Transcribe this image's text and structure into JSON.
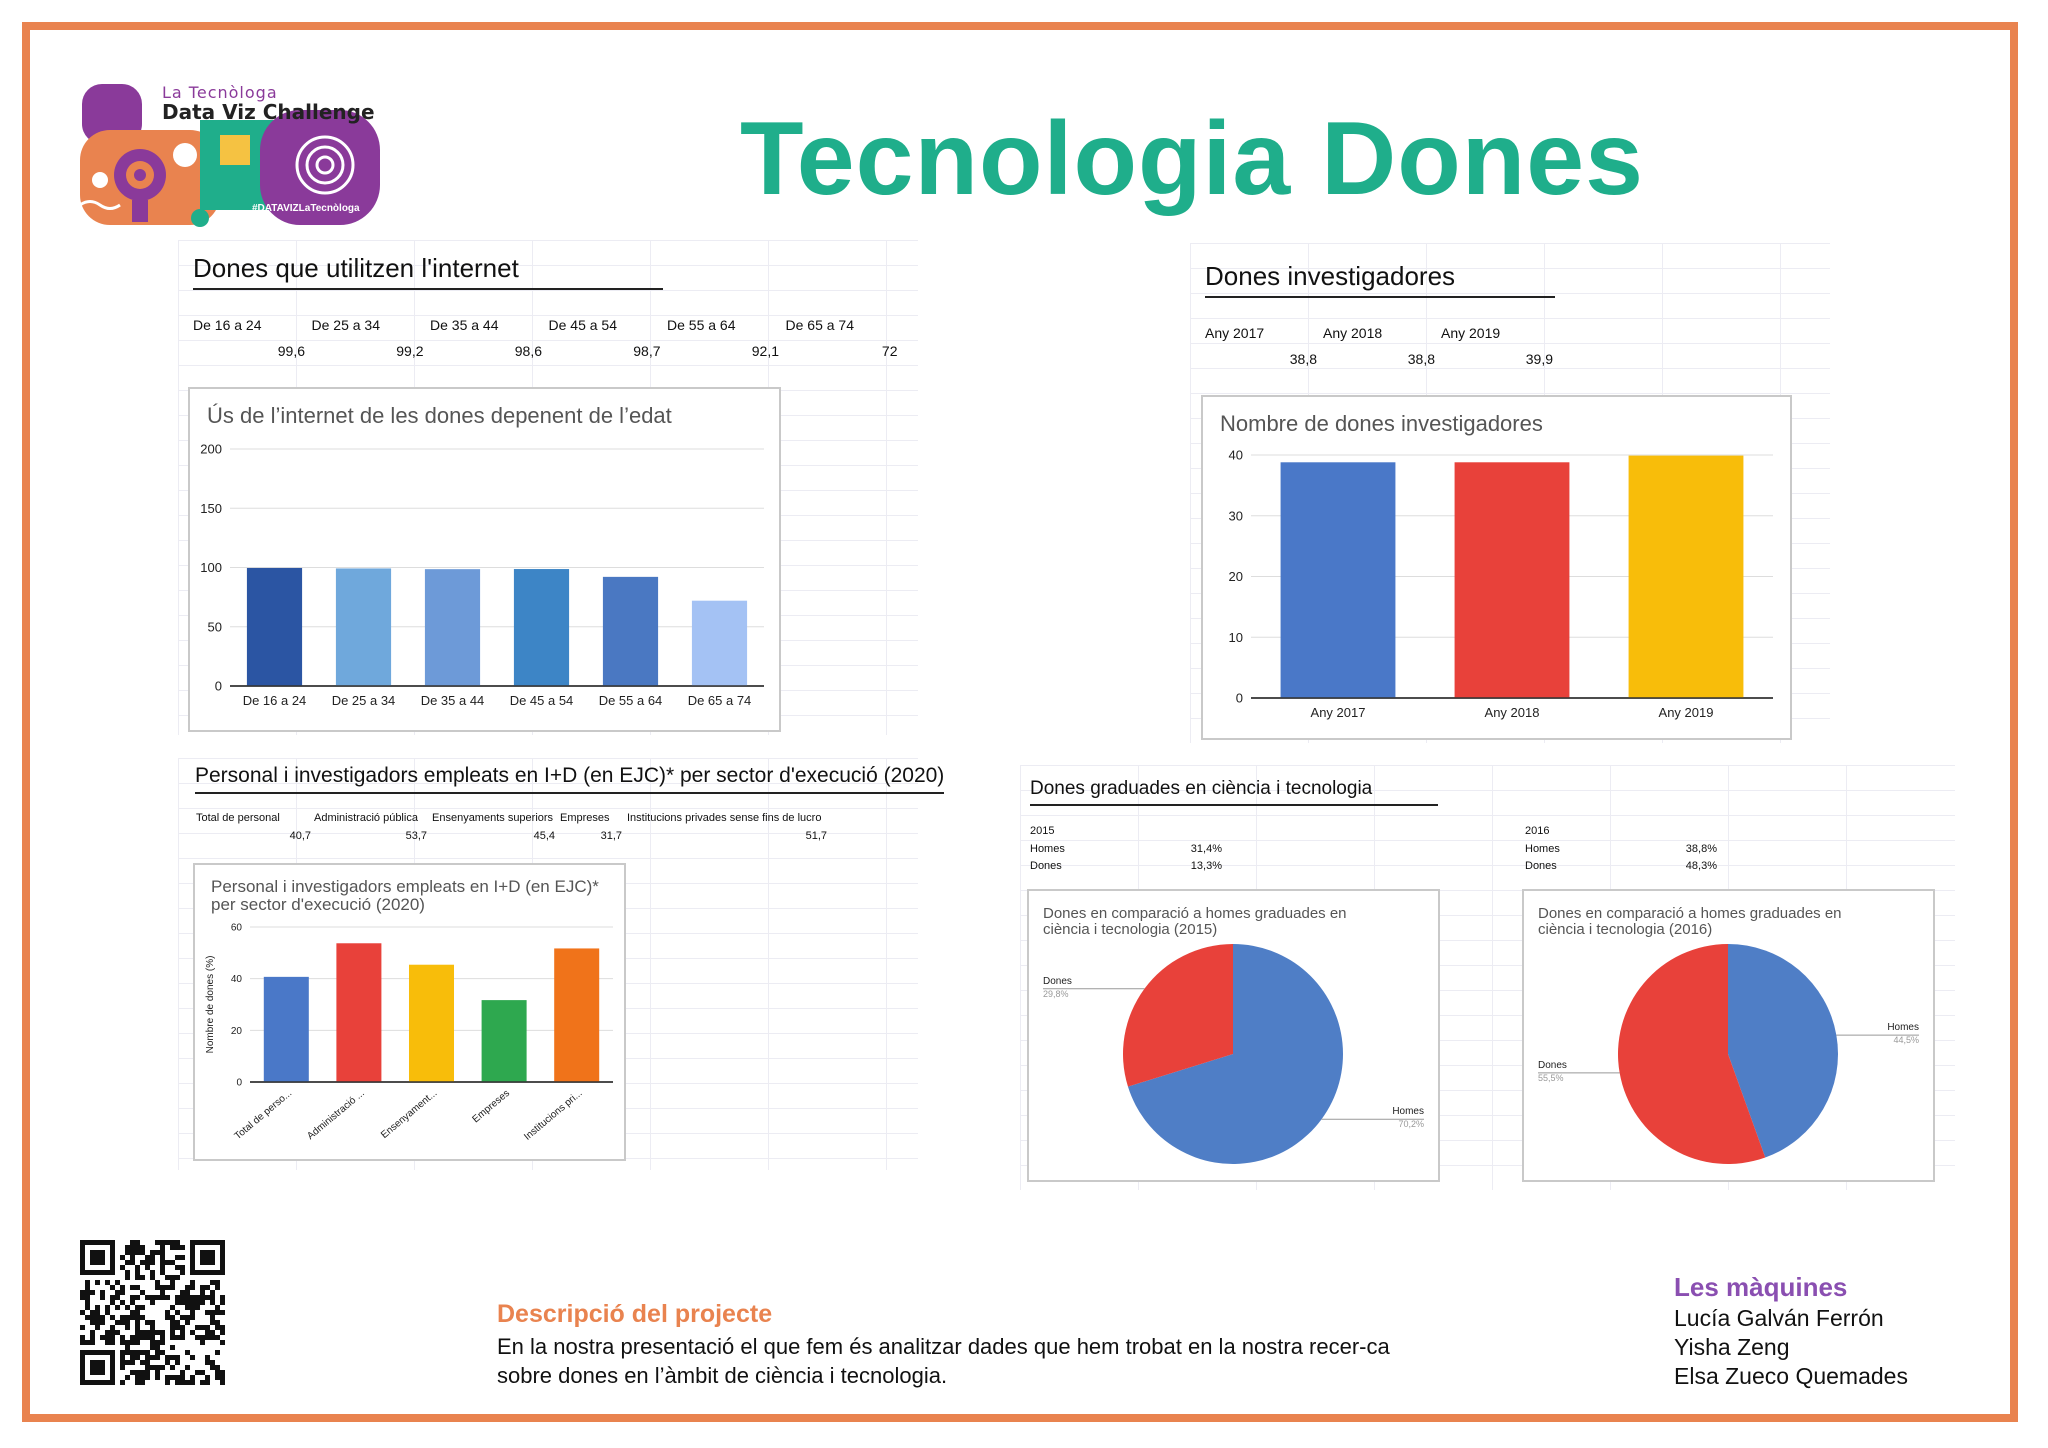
{
  "logo": {
    "small": "La Tecnòloga",
    "big": "Data Viz Challenge",
    "hashtag": "#DATAVIZLaTecnòloga"
  },
  "title": "Tecnologia Dones",
  "internet": {
    "section_title": "Dones que utilitzen l'internet",
    "headers": [
      "De 16 a 24",
      "De 25 a 34",
      "De 35 a 44",
      "De 45 a 54",
      "De 55 a 64",
      "De 65 a 74"
    ],
    "values": [
      "99,6",
      "99,2",
      "98,6",
      "98,7",
      "92,1",
      "72"
    ]
  },
  "researchers": {
    "section_title": "Dones investigadores",
    "headers": [
      "Any 2017",
      "Any 2018",
      "Any 2019"
    ],
    "values": [
      "38,8",
      "38,8",
      "39,9"
    ]
  },
  "personal": {
    "section_title": "Personal i investigadors empleats en I+D (en EJC)* per sector d'execució (2020)",
    "headers": [
      "Total de personal",
      "Administració pública",
      "Ensenyaments superiors",
      "Empreses",
      "Institucions privades sense fins de lucro"
    ],
    "values": [
      "40,7",
      "53,7",
      "45,4",
      "31,7",
      "51,7"
    ]
  },
  "graduates": {
    "section_title": "Dones graduades en ciència i tecnologia",
    "y2015": {
      "year": "2015",
      "rows": [
        [
          "Homes",
          "31,4%"
        ],
        [
          "Dones",
          "13,3%"
        ]
      ]
    },
    "y2016": {
      "year": "2016",
      "rows": [
        [
          "Homes",
          "38,8%"
        ],
        [
          "Dones",
          "48,3%"
        ]
      ]
    }
  },
  "chart_data": [
    {
      "type": "bar",
      "title": "Ús de l’internet de les dones depenent de l’edat",
      "categories": [
        "De 16 a 24",
        "De 25 a 34",
        "De 35 a 44",
        "De 45 a 54",
        "De 55 a 64",
        "De 65 a 74"
      ],
      "values": [
        99.6,
        99.2,
        98.6,
        98.7,
        92.1,
        72
      ],
      "colors": [
        "#2b55a3",
        "#6fa8dc",
        "#6d9ad8",
        "#3d85c6",
        "#4a78c2",
        "#a4c2f4"
      ],
      "ylim": [
        0,
        200
      ],
      "yticks": [
        0,
        50,
        100,
        150,
        200
      ],
      "grid": true
    },
    {
      "type": "bar",
      "title": "Nombre de dones investigadores",
      "categories": [
        "Any 2017",
        "Any 2018",
        "Any 2019"
      ],
      "values": [
        38.8,
        38.8,
        39.9
      ],
      "colors": [
        "#4a78c8",
        "#e8413a",
        "#f8bd0a"
      ],
      "ylim": [
        0,
        40
      ],
      "yticks": [
        0,
        10,
        20,
        30,
        40
      ],
      "grid": true
    },
    {
      "type": "bar",
      "title_lines": [
        "Personal i investigadors empleats en I+D (en EJC)*",
        "per sector d'execució (2020)"
      ],
      "ylabel": "Nombre de dones (%)",
      "categories": [
        "Total de perso...",
        "Administració ...",
        "Ensenyament...",
        "Empreses",
        "Institucions pri..."
      ],
      "values": [
        40.7,
        53.7,
        45.4,
        31.7,
        51.7
      ],
      "colors": [
        "#4a78c8",
        "#e8413a",
        "#f8bd0a",
        "#2ea84f",
        "#f0731a"
      ],
      "ylim": [
        0,
        60
      ],
      "yticks": [
        0,
        20,
        40,
        60
      ],
      "grid": true
    },
    {
      "type": "pie",
      "title_lines": [
        "Dones en comparació a homes graduades en",
        "ciència i tecnologia (2015)"
      ],
      "labels": [
        "Homes",
        "Dones"
      ],
      "values": [
        70.2,
        29.8
      ],
      "value_labels": [
        "70,2%",
        "29,8%"
      ],
      "colors": [
        "#4f7ec6",
        "#e8413a"
      ]
    },
    {
      "type": "pie",
      "title_lines": [
        "Dones en comparació a homes graduades en",
        "ciència i tecnologia (2016)"
      ],
      "labels": [
        "Homes",
        "Dones"
      ],
      "values": [
        44.5,
        55.5
      ],
      "value_labels": [
        "44,5%",
        "55,5%"
      ],
      "colors": [
        "#4f7ec6",
        "#e8413a"
      ]
    }
  ],
  "description": {
    "heading": "Descripció del projecte",
    "text": "En la nostra presentació el que fem és analitzar dades que hem trobat en la nostra recer-ca sobre dones en l’àmbit de ciència i tecnologia."
  },
  "team": {
    "name": "Les màquines",
    "members": [
      "Lucía Galván Ferrón",
      "Yisha Zeng",
      "Elsa Zueco Quemades"
    ]
  }
}
